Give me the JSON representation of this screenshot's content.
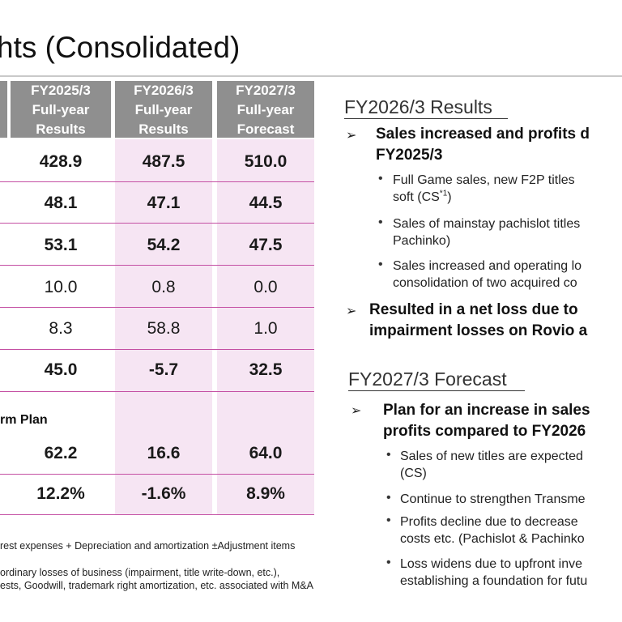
{
  "title": "hts (Consolidated)",
  "columns": [
    {
      "lines": [
        "FY2025/3",
        "Full-year",
        "Results"
      ]
    },
    {
      "lines": [
        "FY2026/3",
        "Full-year",
        "Results"
      ]
    },
    {
      "lines": [
        "FY2027/3",
        "Full-year",
        "Forecast"
      ]
    }
  ],
  "rows": [
    {
      "values": [
        "428.9",
        "487.5",
        "510.0"
      ],
      "bold": true
    },
    {
      "values": [
        "48.1",
        "47.1",
        "44.5"
      ],
      "bold": true
    },
    {
      "values": [
        "53.1",
        "54.2",
        "47.5"
      ],
      "bold": true
    },
    {
      "values": [
        "10.0",
        "0.8",
        "0.0"
      ],
      "bold": false
    },
    {
      "values": [
        "8.3",
        "58.8",
        "1.0"
      ],
      "bold": false
    },
    {
      "values": [
        "45.0",
        "-5.7",
        "32.5"
      ],
      "bold": true
    }
  ],
  "plan_label": "rm Plan",
  "plan_rows": [
    {
      "values": [
        "62.2",
        "16.6",
        "64.0"
      ],
      "bold": true
    },
    {
      "values": [
        "12.2%",
        "-1.6%",
        "8.9%"
      ],
      "bold": true
    }
  ],
  "footnotes": [
    "rest expenses + Depreciation and amortization ±Adjustment items",
    "ordinary losses of business (impairment, title write-down, etc.),",
    "ests, Goodwill, trademark right amortization, etc. associated with M&A"
  ],
  "results_section": {
    "heading": "FY2026/3 Results",
    "bullet1": {
      "lines": [
        "Sales increased and profits d",
        "FY2025/3"
      ],
      "subs": [
        {
          "lines": [
            "Full Game sales, new F2P titles",
            "soft (CS"
          ],
          "sup": "*1",
          "tail": ")"
        },
        {
          "lines": [
            "Sales of mainstay pachislot titles",
            "Pachinko)"
          ]
        },
        {
          "lines": [
            "Sales increased and operating lo",
            "consolidation of two acquired co"
          ]
        }
      ]
    },
    "bullet2": {
      "lines": [
        "Resulted in a net loss due to",
        "impairment losses on Rovio a"
      ]
    }
  },
  "forecast_section": {
    "heading": "FY2027/3 Forecast",
    "bullet1": {
      "lines": [
        "Plan for an increase in sales",
        "profits compared to FY2026"
      ],
      "subs": [
        {
          "lines": [
            "Sales of new titles are expected",
            "(CS)"
          ]
        },
        {
          "lines": [
            "Continue to strengthen Transme"
          ]
        },
        {
          "lines": [
            "Profits decline due to decrease",
            "costs etc. (Pachislot & Pachinko"
          ]
        },
        {
          "lines": [
            "Loss widens due to upfront inve",
            "establishing a foundation for futu"
          ]
        }
      ]
    }
  },
  "symbols": {
    "arrow": "➢",
    "dot": "•"
  }
}
